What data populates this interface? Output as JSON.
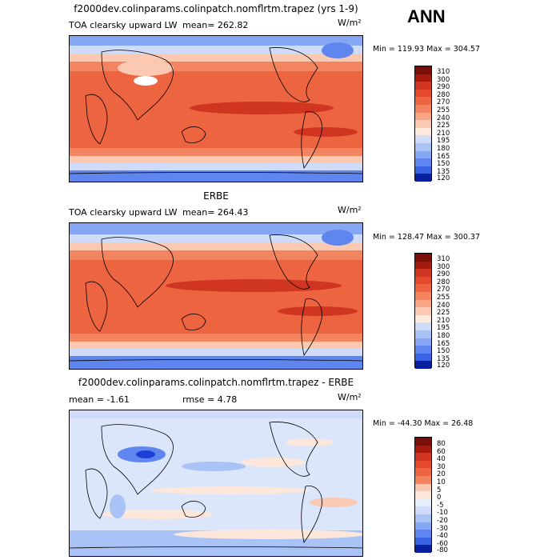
{
  "season": "ANN",
  "units": "W/m²",
  "colors": {
    "cool": [
      "#0a1f9e",
      "#1c3fd6",
      "#3a63e6",
      "#5f86ef",
      "#86a8f4",
      "#aac3f7",
      "#cfdcf9"
    ],
    "warm": [
      "#ffe8dc",
      "#fbc9b2",
      "#f7a584",
      "#f28460",
      "#ec6440",
      "#e4492c",
      "#cf3520",
      "#a31a0f",
      "#7a0f08"
    ],
    "diff_cool": [
      "#0a1f9e",
      "#1c3fd6",
      "#3a63e6",
      "#5f86ef",
      "#86a8f4",
      "#aac3f7",
      "#cfdcf9",
      "#e6eefb"
    ],
    "diff_warm": [
      "#fde6da",
      "#fbc9b2",
      "#f7a584",
      "#f28460",
      "#ec6440",
      "#e4492c",
      "#cf3520",
      "#a31a0f"
    ]
  },
  "panels": [
    {
      "title": "f2000dev.colinparams.colinpatch.nomflrtm.trapez (yrs 1-9)",
      "left_label": "TOA clearsky upward LW",
      "mean_text": "mean= 262.82",
      "min_max": "Min = 119.93 Max = 304.57",
      "levels": [
        "310",
        "300",
        "290",
        "280",
        "270",
        "255",
        "240",
        "225",
        "210",
        "195",
        "180",
        "165",
        "150",
        "135",
        "120"
      ]
    },
    {
      "title": "ERBE",
      "left_label": "TOA clearsky upward LW",
      "mean_text": "mean= 264.43",
      "min_max": "Min = 128.47 Max = 300.37",
      "levels": [
        "310",
        "300",
        "290",
        "280",
        "270",
        "255",
        "240",
        "225",
        "210",
        "195",
        "180",
        "165",
        "150",
        "135",
        "120"
      ]
    },
    {
      "title": "f2000dev.colinparams.colinpatch.nomflrtm.trapez - ERBE",
      "left_label": "mean =   -1.61",
      "mean_text": "rmse =    4.78",
      "min_max": "Min = -44.30 Max =  26.48",
      "levels": [
        "80",
        "60",
        "40",
        "30",
        "20",
        "10",
        "5",
        "0",
        "-5",
        "-10",
        "-20",
        "-30",
        "-40",
        "-60",
        "-80"
      ]
    }
  ]
}
